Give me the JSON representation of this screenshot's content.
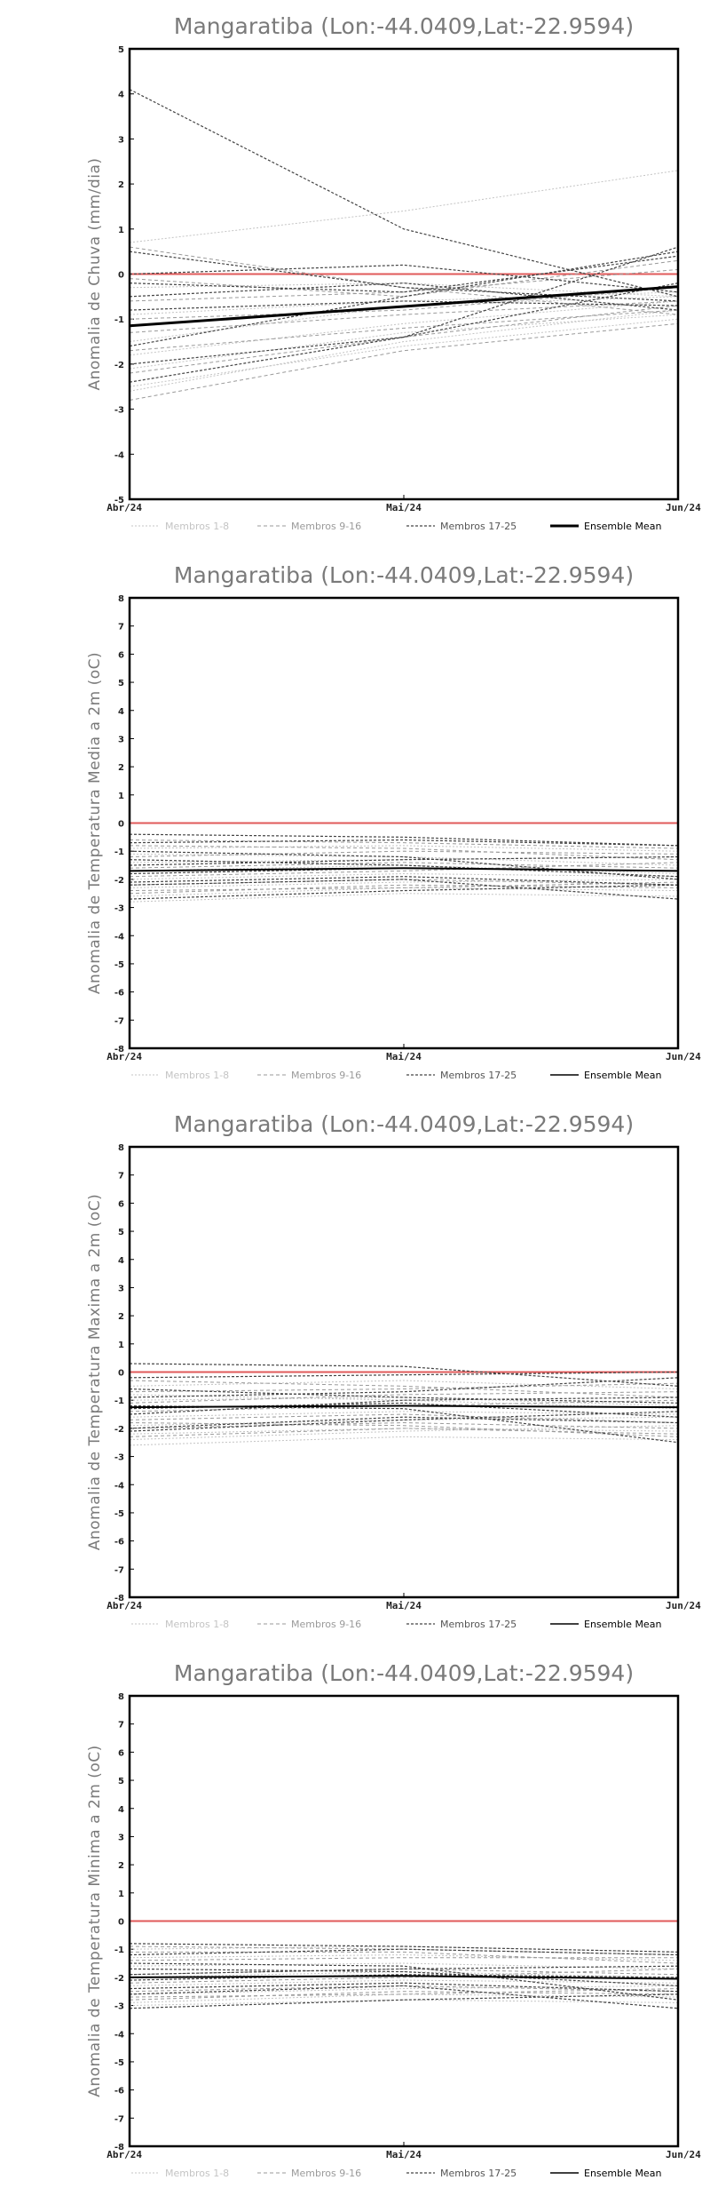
{
  "chart_data": [
    {
      "type": "line",
      "title": "Mangaratiba (Lon:-44.0409,Lat:-22.9594)",
      "ylabel": "Anomalia de Chuva (mm/dia)",
      "x": [
        "Abr/24",
        "Mai/24",
        "Jun/24"
      ],
      "ylim": [
        -5,
        5
      ],
      "yticks": [
        -5,
        -4,
        -3,
        -2,
        -1,
        0,
        1,
        2,
        3,
        4,
        5
      ],
      "legend": [
        "Membros 1-8",
        "Membros 9-16",
        "Membros 17-25",
        "Ensemble Mean"
      ],
      "reference_line": 0,
      "colors": {
        "ref": "#e05a5a",
        "g1": "#c4c4c4",
        "g2": "#9a9a9a",
        "g3": "#444444",
        "mean": "#000000"
      },
      "series": [
        {
          "group": 1,
          "values": [
            0.7,
            1.4,
            2.3
          ]
        },
        {
          "group": 1,
          "values": [
            -1.5,
            -0.7,
            -0.5
          ]
        },
        {
          "group": 1,
          "values": [
            -2.1,
            -1.3,
            -0.9
          ]
        },
        {
          "group": 1,
          "values": [
            -0.9,
            -0.6,
            -0.4
          ]
        },
        {
          "group": 1,
          "values": [
            -2.5,
            -1.6,
            -1.0
          ]
        },
        {
          "group": 1,
          "values": [
            -0.3,
            -0.2,
            -0.5
          ]
        },
        {
          "group": 1,
          "values": [
            -1.8,
            -1.1,
            -0.6
          ]
        },
        {
          "group": 1,
          "values": [
            -2.6,
            -1.5,
            -0.8
          ]
        },
        {
          "group": 2,
          "values": [
            0.6,
            -0.3,
            -0.9
          ]
        },
        {
          "group": 2,
          "values": [
            -1.0,
            -0.8,
            -0.3
          ]
        },
        {
          "group": 2,
          "values": [
            -2.2,
            -1.4,
            -0.7
          ]
        },
        {
          "group": 2,
          "values": [
            -0.6,
            -0.4,
            0.1
          ]
        },
        {
          "group": 2,
          "values": [
            -1.3,
            -0.9,
            -0.6
          ]
        },
        {
          "group": 2,
          "values": [
            -2.8,
            -1.7,
            -1.1
          ]
        },
        {
          "group": 2,
          "values": [
            -0.1,
            -0.5,
            0.3
          ]
        },
        {
          "group": 2,
          "values": [
            -1.7,
            -1.2,
            -0.8
          ]
        },
        {
          "group": 3,
          "values": [
            4.1,
            1.0,
            -0.5
          ]
        },
        {
          "group": 3,
          "values": [
            0.5,
            -0.3,
            -0.6
          ]
        },
        {
          "group": 3,
          "values": [
            0.0,
            0.2,
            -0.4
          ]
        },
        {
          "group": 3,
          "values": [
            -0.2,
            -0.4,
            0.4
          ]
        },
        {
          "group": 3,
          "values": [
            -1.6,
            -0.5,
            0.5
          ]
        },
        {
          "group": 3,
          "values": [
            -2.0,
            -1.4,
            0.6
          ]
        },
        {
          "group": 3,
          "values": [
            -0.8,
            -0.6,
            -0.7
          ]
        },
        {
          "group": 3,
          "values": [
            -2.4,
            -1.4,
            -0.2
          ]
        },
        {
          "group": 3,
          "values": [
            -0.5,
            -0.2,
            -0.8
          ]
        }
      ],
      "mean": [
        -1.15,
        -0.72,
        -0.28
      ]
    },
    {
      "type": "line",
      "title": "Mangaratiba (Lon:-44.0409,Lat:-22.9594)",
      "ylabel": "Anomalia de Temperatura Media a 2m (oC)",
      "x": [
        "Abr/24",
        "Mai/24",
        "Jun/24"
      ],
      "ylim": [
        -8,
        8
      ],
      "yticks": [
        -8,
        -7,
        -6,
        -5,
        -4,
        -3,
        -2,
        -1,
        0,
        1,
        2,
        3,
        4,
        5,
        6,
        7,
        8
      ],
      "legend": [
        "Membros 1-8",
        "Membros 9-16",
        "Membros 17-25",
        "Ensemble Mean"
      ],
      "reference_line": 0,
      "colors": {
        "ref": "#e05a5a",
        "g1": "#c4c4c4",
        "g2": "#9a9a9a",
        "g3": "#444444",
        "mean": "#000000"
      },
      "series": [
        {
          "group": 1,
          "values": [
            -0.9,
            -0.8,
            -1.0
          ]
        },
        {
          "group": 1,
          "values": [
            -1.4,
            -1.3,
            -1.2
          ]
        },
        {
          "group": 1,
          "values": [
            -2.0,
            -1.8,
            -1.9
          ]
        },
        {
          "group": 1,
          "values": [
            -2.6,
            -2.3,
            -2.4
          ]
        },
        {
          "group": 1,
          "values": [
            -1.1,
            -1.2,
            -1.5
          ]
        },
        {
          "group": 1,
          "values": [
            -2.3,
            -2.1,
            -2.0
          ]
        },
        {
          "group": 1,
          "values": [
            -1.7,
            -1.5,
            -1.8
          ]
        },
        {
          "group": 1,
          "values": [
            -2.8,
            -2.5,
            -2.6
          ]
        },
        {
          "group": 2,
          "values": [
            -0.8,
            -0.9,
            -1.3
          ]
        },
        {
          "group": 2,
          "values": [
            -1.6,
            -1.4,
            -1.6
          ]
        },
        {
          "group": 2,
          "values": [
            -2.2,
            -2.0,
            -2.2
          ]
        },
        {
          "group": 2,
          "values": [
            -1.2,
            -1.0,
            -1.1
          ]
        },
        {
          "group": 2,
          "values": [
            -2.5,
            -2.2,
            -2.3
          ]
        },
        {
          "group": 2,
          "values": [
            -1.9,
            -1.7,
            -1.4
          ]
        },
        {
          "group": 2,
          "values": [
            -0.6,
            -0.7,
            -0.9
          ]
        },
        {
          "group": 2,
          "values": [
            -2.4,
            -2.3,
            -2.1
          ]
        },
        {
          "group": 3,
          "values": [
            -0.4,
            -0.5,
            -0.8
          ]
        },
        {
          "group": 3,
          "values": [
            -0.7,
            -0.6,
            -0.8
          ]
        },
        {
          "group": 3,
          "values": [
            -1.8,
            -1.6,
            -1.7
          ]
        },
        {
          "group": 3,
          "values": [
            -1.3,
            -1.5,
            -1.9
          ]
        },
        {
          "group": 3,
          "values": [
            -2.1,
            -1.9,
            -2.2
          ]
        },
        {
          "group": 3,
          "values": [
            -2.7,
            -2.4,
            -2.2
          ]
        },
        {
          "group": 3,
          "values": [
            -1.0,
            -1.2,
            -2.0
          ]
        },
        {
          "group": 3,
          "values": [
            -2.2,
            -2.0,
            -2.7
          ]
        },
        {
          "group": 3,
          "values": [
            -1.5,
            -1.3,
            -1.2
          ]
        }
      ],
      "mean": [
        -1.7,
        -1.6,
        -1.7
      ]
    },
    {
      "type": "line",
      "title": "Mangaratiba (Lon:-44.0409,Lat:-22.9594)",
      "ylabel": "Anomalia de Temperatura Maxima a 2m (oC)",
      "x": [
        "Abr/24",
        "Mai/24",
        "Jun/24"
      ],
      "ylim": [
        -8,
        8
      ],
      "yticks": [
        -8,
        -7,
        -6,
        -5,
        -4,
        -3,
        -2,
        -1,
        0,
        1,
        2,
        3,
        4,
        5,
        6,
        7,
        8
      ],
      "legend": [
        "Membros 1-8",
        "Membros 9-16",
        "Membros 17-25",
        "Ensemble Mean"
      ],
      "reference_line": 0,
      "colors": {
        "ref": "#e05a5a",
        "g1": "#c4c4c4",
        "g2": "#9a9a9a",
        "g3": "#444444",
        "mean": "#000000"
      },
      "series": [
        {
          "group": 1,
          "values": [
            -0.5,
            -0.3,
            -0.6
          ]
        },
        {
          "group": 1,
          "values": [
            -1.0,
            -0.9,
            -1.2
          ]
        },
        {
          "group": 1,
          "values": [
            -1.6,
            -1.4,
            -1.5
          ]
        },
        {
          "group": 1,
          "values": [
            -2.2,
            -2.0,
            -2.1
          ]
        },
        {
          "group": 1,
          "values": [
            -2.6,
            -2.3,
            -2.4
          ]
        },
        {
          "group": 1,
          "values": [
            -1.9,
            -1.7,
            -1.6
          ]
        },
        {
          "group": 1,
          "values": [
            -0.8,
            -1.0,
            -1.3
          ]
        },
        {
          "group": 1,
          "values": [
            -2.4,
            -2.1,
            -1.9
          ]
        },
        {
          "group": 2,
          "values": [
            -0.3,
            -0.5,
            -0.9
          ]
        },
        {
          "group": 2,
          "values": [
            -1.4,
            -1.2,
            -1.0
          ]
        },
        {
          "group": 2,
          "values": [
            -2.0,
            -1.8,
            -2.0
          ]
        },
        {
          "group": 2,
          "values": [
            -1.1,
            -0.8,
            -0.7
          ]
        },
        {
          "group": 2,
          "values": [
            -2.3,
            -2.0,
            -2.2
          ]
        },
        {
          "group": 2,
          "values": [
            -1.7,
            -1.5,
            -1.8
          ]
        },
        {
          "group": 2,
          "values": [
            -0.7,
            -0.6,
            -0.4
          ]
        },
        {
          "group": 2,
          "values": [
            -1.8,
            -1.9,
            -2.3
          ]
        },
        {
          "group": 3,
          "values": [
            0.3,
            0.2,
            -0.5
          ]
        },
        {
          "group": 3,
          "values": [
            -0.2,
            -0.1,
            0.0
          ]
        },
        {
          "group": 3,
          "values": [
            -0.9,
            -0.7,
            -0.2
          ]
        },
        {
          "group": 3,
          "values": [
            -1.3,
            -1.1,
            -1.6
          ]
        },
        {
          "group": 3,
          "values": [
            -2.0,
            -1.6,
            -1.8
          ]
        },
        {
          "group": 3,
          "values": [
            -1.5,
            -1.0,
            -0.9
          ]
        },
        {
          "group": 3,
          "values": [
            -1.2,
            -1.3,
            -2.5
          ]
        },
        {
          "group": 3,
          "values": [
            -2.1,
            -1.7,
            -1.4
          ]
        },
        {
          "group": 3,
          "values": [
            -0.6,
            -0.9,
            -1.1
          ]
        }
      ],
      "mean": [
        -1.25,
        -1.2,
        -1.25
      ]
    },
    {
      "type": "line",
      "title": "Mangaratiba (Lon:-44.0409,Lat:-22.9594)",
      "ylabel": "Anomalia de Temperatura Minima a 2m (oC)",
      "x": [
        "Abr/24",
        "Mai/24",
        "Jun/24"
      ],
      "ylim": [
        -8,
        8
      ],
      "yticks": [
        -8,
        -7,
        -6,
        -5,
        -4,
        -3,
        -2,
        -1,
        0,
        1,
        2,
        3,
        4,
        5,
        6,
        7,
        8
      ],
      "legend": [
        "Membros 1-8",
        "Membros 9-16",
        "Membros 17-25",
        "Ensemble Mean"
      ],
      "reference_line": 0,
      "colors": {
        "ref": "#e05a5a",
        "g1": "#c4c4c4",
        "g2": "#9a9a9a",
        "g3": "#444444",
        "mean": "#000000"
      },
      "series": [
        {
          "group": 1,
          "values": [
            -1.0,
            -0.9,
            -1.1
          ]
        },
        {
          "group": 1,
          "values": [
            -1.6,
            -1.5,
            -1.7
          ]
        },
        {
          "group": 1,
          "values": [
            -2.3,
            -2.1,
            -2.2
          ]
        },
        {
          "group": 1,
          "values": [
            -2.9,
            -2.6,
            -2.7
          ]
        },
        {
          "group": 1,
          "values": [
            -1.3,
            -1.2,
            -1.4
          ]
        },
        {
          "group": 1,
          "values": [
            -2.6,
            -2.4,
            -2.3
          ]
        },
        {
          "group": 1,
          "values": [
            -2.0,
            -1.8,
            -2.0
          ]
        },
        {
          "group": 1,
          "values": [
            -3.0,
            -2.8,
            -2.9
          ]
        },
        {
          "group": 2,
          "values": [
            -1.1,
            -1.1,
            -1.5
          ]
        },
        {
          "group": 2,
          "values": [
            -1.9,
            -1.7,
            -1.9
          ]
        },
        {
          "group": 2,
          "values": [
            -2.5,
            -2.3,
            -2.5
          ]
        },
        {
          "group": 2,
          "values": [
            -1.4,
            -1.3,
            -1.3
          ]
        },
        {
          "group": 2,
          "values": [
            -2.8,
            -2.5,
            -2.6
          ]
        },
        {
          "group": 2,
          "values": [
            -2.2,
            -2.0,
            -1.7
          ]
        },
        {
          "group": 2,
          "values": [
            -0.9,
            -1.0,
            -1.2
          ]
        },
        {
          "group": 2,
          "values": [
            -2.7,
            -2.6,
            -2.4
          ]
        },
        {
          "group": 3,
          "values": [
            -0.8,
            -0.9,
            -1.1
          ]
        },
        {
          "group": 3,
          "values": [
            -1.2,
            -1.0,
            -1.2
          ]
        },
        {
          "group": 3,
          "values": [
            -2.1,
            -1.9,
            -2.0
          ]
        },
        {
          "group": 3,
          "values": [
            -1.7,
            -1.8,
            -2.3
          ]
        },
        {
          "group": 3,
          "values": [
            -2.4,
            -2.2,
            -2.5
          ]
        },
        {
          "group": 3,
          "values": [
            -3.1,
            -2.8,
            -2.6
          ]
        },
        {
          "group": 3,
          "values": [
            -1.5,
            -1.6,
            -2.8
          ]
        },
        {
          "group": 3,
          "values": [
            -2.6,
            -2.3,
            -3.1
          ]
        },
        {
          "group": 3,
          "values": [
            -1.9,
            -1.7,
            -1.6
          ]
        }
      ],
      "mean": [
        -2.0,
        -1.95,
        -2.05
      ]
    }
  ]
}
